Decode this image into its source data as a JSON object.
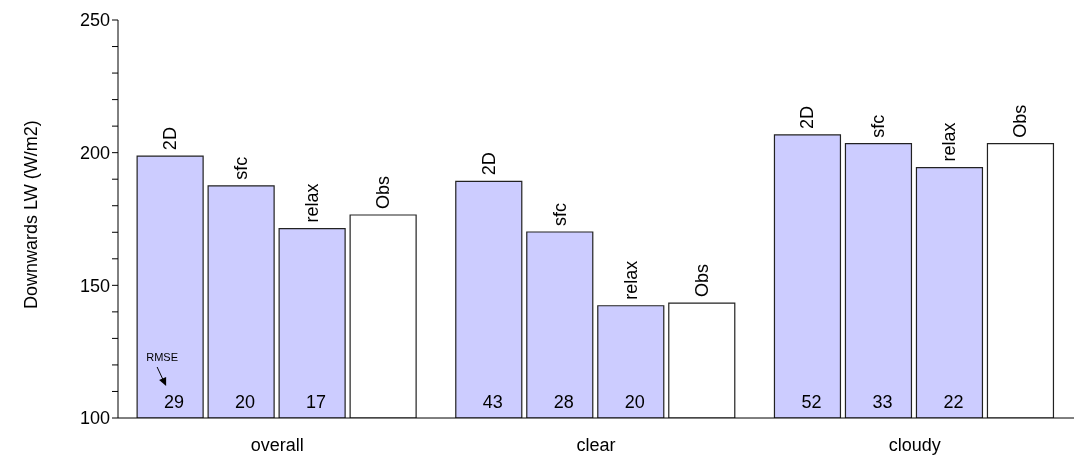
{
  "chart_data": {
    "type": "bar",
    "ylabel": "Downwards LW (W/m2)",
    "categories": [
      "overall",
      "clear",
      "cloudy"
    ],
    "series": [
      {
        "name": "2D",
        "color": "#ccccff",
        "values": [
          198.7,
          189.2,
          206.7
        ]
      },
      {
        "name": "sfc",
        "color": "#ccccff",
        "values": [
          187.5,
          170.1,
          203.4
        ]
      },
      {
        "name": "relax",
        "color": "#ccccff",
        "values": [
          171.4,
          142.3,
          194.4
        ]
      },
      {
        "name": "Obs",
        "color": "#ffffff",
        "values": [
          176.5,
          143.3,
          203.4
        ]
      }
    ],
    "ylim": [
      100,
      250
    ],
    "yticks": [
      100,
      {
        "value": 110,
        "label": null
      },
      {
        "value": 120,
        "label": null
      },
      {
        "value": 130,
        "label": null
      },
      {
        "value": 140,
        "label": null
      },
      150,
      {
        "value": 160,
        "label": null
      },
      {
        "value": 170,
        "label": null
      },
      {
        "value": 180,
        "label": null
      },
      {
        "value": 190,
        "label": null
      },
      200,
      {
        "value": 210,
        "label": null
      },
      {
        "value": 220,
        "label": null
      },
      {
        "value": 230,
        "label": null
      },
      {
        "value": 240,
        "label": null
      },
      250
    ],
    "grid": false,
    "legend": false,
    "annotations": [
      "RMSE",
      "29",
      "20",
      "17",
      "43",
      "28",
      "20",
      "52",
      "33",
      "22"
    ]
  }
}
